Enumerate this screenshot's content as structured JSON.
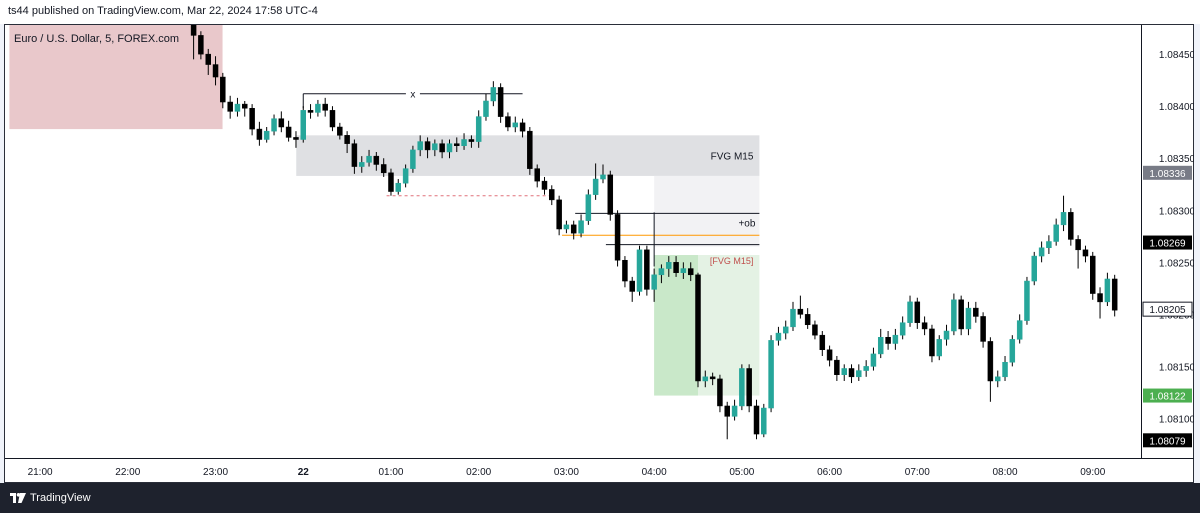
{
  "header": {
    "publisher_line": "ts44 published on TradingView.com, Mar 22, 2024 17:58 UTC-4"
  },
  "footer": {
    "brand": "TradingView",
    "brand_icon": "tradingview-logo-icon"
  },
  "chart_data": {
    "type": "candlestick",
    "symbol_label": "Euro / U.S. Dollar, 5, FOREX.com",
    "timeframe_minutes": 5,
    "x_ticks": [
      "21:00",
      "22:00",
      "23:00",
      "22",
      "01:00",
      "02:00",
      "03:00",
      "04:00",
      "05:00",
      "06:00",
      "07:00",
      "08:00",
      "09:00"
    ],
    "x_range_hours": [
      20.6,
      33.55
    ],
    "ylim": [
      1.08062,
      1.08478
    ],
    "y_ticks": [
      "1.08450",
      "1.08400",
      "1.08350",
      "1.08300",
      "1.08250",
      "1.08200",
      "1.08150",
      "1.08100"
    ],
    "price_labels": [
      {
        "value": "1.08336",
        "price": 1.08336,
        "bg": "#787b86",
        "fg": "#ffffff"
      },
      {
        "value": "1.08269",
        "price": 1.08269,
        "bg": "#000000",
        "fg": "#ffffff"
      },
      {
        "value": "1.08205",
        "price": 1.08205,
        "bg": "#ffffff",
        "fg": "#131722",
        "border": "#131722"
      },
      {
        "value": "1.08122",
        "price": 1.08122,
        "bg": "#4caf50",
        "fg": "#ffffff"
      },
      {
        "value": "1.08079",
        "price": 1.08079,
        "bg": "#000000",
        "fg": "#ffffff"
      }
    ],
    "colors": {
      "up": "#26a69a",
      "down": "#000000",
      "wick": "#000000"
    },
    "zones": [
      {
        "name": "supply-zone",
        "t0": 20.65,
        "t1": 23.08,
        "p0": 1.08378,
        "p1": 1.08478,
        "color": "#e9c8cb"
      },
      {
        "name": "fvg-m15-gray",
        "t0": 23.92,
        "t1": 29.2,
        "p0": 1.08333,
        "p1": 1.08372,
        "color": "#dfe0e3",
        "label": "FVG M15",
        "label_color": "#131722"
      },
      {
        "name": "fvg-m15-light",
        "t0": 28.0,
        "t1": 29.2,
        "p0": 1.08265,
        "p1": 1.08333,
        "color": "#f2f2f4"
      },
      {
        "name": "fvg-m15-green",
        "t0": 28.0,
        "t1": 29.2,
        "p0": 1.08122,
        "p1": 1.08257,
        "color": "#e4f2e4",
        "label": "[FVG M15]",
        "label_color": "#c0504d"
      },
      {
        "name": "fvg-m15-green-dark",
        "t0": 28.0,
        "t1": 28.5,
        "p0": 1.08122,
        "p1": 1.08257,
        "color": "#c9e8c9"
      }
    ],
    "lines": [
      {
        "name": "x-level-line",
        "t0": 24.0,
        "t1": 26.5,
        "price": 1.08412,
        "color": "#131722",
        "dash": "",
        "label": "x"
      },
      {
        "name": "x-level-tick",
        "t0": 24.0,
        "t1": 24.0,
        "price": 1.08412,
        "price2": 1.08398,
        "color": "#131722",
        "dash": ""
      },
      {
        "name": "low-dashed-line",
        "t0": 24.95,
        "t1": 26.8,
        "price": 1.08314,
        "color": "#e0707a",
        "dash": "3,3"
      },
      {
        "name": "ob-upper-line",
        "t0": 27.1,
        "t1": 29.2,
        "price": 1.08297,
        "color": "#131722",
        "dash": "",
        "label": "+ob"
      },
      {
        "name": "ob-orange-line",
        "t0": 26.95,
        "t1": 29.2,
        "price": 1.08276,
        "color": "#ff9800",
        "dash": ""
      },
      {
        "name": "fvg-top-line",
        "t0": 27.45,
        "t1": 29.2,
        "price": 1.08267,
        "color": "#131722",
        "dash": ""
      },
      {
        "name": "fvg-vertical-line",
        "t0": 28.0,
        "t1": 28.0,
        "price": 1.08298,
        "price2": 1.08246,
        "color": "#131722",
        "dash": ""
      }
    ],
    "candles": [
      [
        22.75,
        1.08478,
        1.08468,
        1.08478,
        1.08445
      ],
      [
        22.833,
        1.08468,
        1.0845,
        1.08472,
        1.08445
      ],
      [
        22.917,
        1.0845,
        1.0844,
        1.08455,
        1.0843
      ],
      [
        23.0,
        1.0844,
        1.08428,
        1.08448,
        1.0842
      ],
      [
        23.083,
        1.08428,
        1.08404,
        1.08432,
        1.08398
      ],
      [
        23.167,
        1.08404,
        1.08395,
        1.0841,
        1.08388
      ],
      [
        23.25,
        1.08395,
        1.08402,
        1.08408,
        1.0839
      ],
      [
        23.333,
        1.08402,
        1.08398,
        1.08405,
        1.0839
      ],
      [
        23.417,
        1.08398,
        1.08378,
        1.08402,
        1.08372
      ],
      [
        23.5,
        1.08378,
        1.08368,
        1.08385,
        1.08362
      ],
      [
        23.583,
        1.08368,
        1.08376,
        1.0838,
        1.08365
      ],
      [
        23.667,
        1.08376,
        1.08388,
        1.08392,
        1.08372
      ],
      [
        23.75,
        1.08388,
        1.0838,
        1.08395,
        1.08375
      ],
      [
        23.833,
        1.0838,
        1.0837,
        1.08386,
        1.08366
      ],
      [
        23.917,
        1.0837,
        1.08368,
        1.08376,
        1.0836
      ],
      [
        24.0,
        1.08368,
        1.08396,
        1.084,
        1.08365
      ],
      [
        24.083,
        1.08396,
        1.08394,
        1.08402,
        1.08388
      ],
      [
        24.167,
        1.08394,
        1.08402,
        1.08406,
        1.0839
      ],
      [
        24.25,
        1.08402,
        1.08396,
        1.08408,
        1.0839
      ],
      [
        24.333,
        1.08396,
        1.0838,
        1.084,
        1.08376
      ],
      [
        24.417,
        1.0838,
        1.08372,
        1.08384,
        1.08368
      ],
      [
        24.5,
        1.08372,
        1.08364,
        1.08376,
        1.08355
      ],
      [
        24.583,
        1.08364,
        1.08342,
        1.08368,
        1.08335
      ],
      [
        24.667,
        1.08342,
        1.08346,
        1.08352,
        1.08336
      ],
      [
        24.75,
        1.08346,
        1.08352,
        1.08358,
        1.08342
      ],
      [
        24.833,
        1.08352,
        1.08344,
        1.08356,
        1.08338
      ],
      [
        24.917,
        1.08344,
        1.08336,
        1.0835,
        1.08332
      ],
      [
        25.0,
        1.08336,
        1.08318,
        1.0834,
        1.08314
      ],
      [
        25.083,
        1.08318,
        1.08326,
        1.0833,
        1.08315
      ],
      [
        25.167,
        1.08326,
        1.0834,
        1.08344,
        1.08322
      ],
      [
        25.25,
        1.0834,
        1.08358,
        1.08362,
        1.08336
      ],
      [
        25.333,
        1.08358,
        1.08366,
        1.08372,
        1.08352
      ],
      [
        25.417,
        1.08366,
        1.08358,
        1.0837,
        1.0835
      ],
      [
        25.5,
        1.08358,
        1.08364,
        1.08368,
        1.08352
      ],
      [
        25.583,
        1.08364,
        1.08356,
        1.08368,
        1.0835
      ],
      [
        25.667,
        1.08356,
        1.08364,
        1.08368,
        1.0835
      ],
      [
        25.75,
        1.08364,
        1.08362,
        1.0837,
        1.08356
      ],
      [
        25.833,
        1.08362,
        1.08368,
        1.08374,
        1.08358
      ],
      [
        25.917,
        1.08368,
        1.08366,
        1.08372,
        1.0836
      ],
      [
        26.0,
        1.08366,
        1.0839,
        1.08396,
        1.0836
      ],
      [
        26.083,
        1.0839,
        1.08405,
        1.08412,
        1.08386
      ],
      [
        26.167,
        1.08405,
        1.08418,
        1.08424,
        1.084
      ],
      [
        26.25,
        1.08418,
        1.0839,
        1.08422,
        1.08384
      ],
      [
        26.333,
        1.0839,
        1.0838,
        1.08394,
        1.08376
      ],
      [
        26.417,
        1.0838,
        1.08384,
        1.0839,
        1.08375
      ],
      [
        26.5,
        1.08384,
        1.08376,
        1.08388,
        1.0837
      ],
      [
        26.583,
        1.08376,
        1.0834,
        1.0838,
        1.08334
      ],
      [
        26.667,
        1.0834,
        1.08328,
        1.08344,
        1.08322
      ],
      [
        26.75,
        1.08328,
        1.0832,
        1.08332,
        1.08315
      ],
      [
        26.833,
        1.0832,
        1.0831,
        1.08324,
        1.08305
      ],
      [
        26.917,
        1.0831,
        1.08282,
        1.08314,
        1.08276
      ],
      [
        27.0,
        1.08282,
        1.08286,
        1.0829,
        1.08278
      ],
      [
        27.083,
        1.08286,
        1.08278,
        1.0829,
        1.08272
      ],
      [
        27.167,
        1.08278,
        1.0829,
        1.08296,
        1.08274
      ],
      [
        27.25,
        1.0829,
        1.08315,
        1.0832,
        1.08286
      ],
      [
        27.333,
        1.08315,
        1.0833,
        1.08345,
        1.0831
      ],
      [
        27.417,
        1.0833,
        1.08334,
        1.08344,
        1.08326
      ],
      [
        27.5,
        1.08334,
        1.08296,
        1.08338,
        1.0829
      ],
      [
        27.583,
        1.08296,
        1.08252,
        1.083,
        1.08246
      ],
      [
        27.667,
        1.08252,
        1.08232,
        1.08256,
        1.08226
      ],
      [
        27.75,
        1.08232,
        1.08222,
        1.08236,
        1.08212
      ],
      [
        27.833,
        1.08222,
        1.08262,
        1.08266,
        1.08218
      ],
      [
        27.917,
        1.08262,
        1.08224,
        1.08266,
        1.08218
      ],
      [
        28.0,
        1.08224,
        1.08238,
        1.08244,
        1.08212
      ],
      [
        28.083,
        1.08238,
        1.08244,
        1.08248,
        1.0823
      ],
      [
        28.167,
        1.08244,
        1.0825,
        1.08256,
        1.08236
      ],
      [
        28.25,
        1.0825,
        1.0824,
        1.08256,
        1.08236
      ],
      [
        28.333,
        1.0824,
        1.08244,
        1.0825,
        1.08234
      ],
      [
        28.417,
        1.08244,
        1.08238,
        1.0825,
        1.08232
      ],
      [
        28.5,
        1.08238,
        1.08136,
        1.0824,
        1.0813
      ],
      [
        28.583,
        1.08136,
        1.0814,
        1.08146,
        1.0813
      ],
      [
        28.667,
        1.0814,
        1.08138,
        1.08144,
        1.08132
      ],
      [
        28.75,
        1.08138,
        1.08112,
        1.08142,
        1.08106
      ],
      [
        28.833,
        1.08112,
        1.08102,
        1.08116,
        1.0808
      ],
      [
        28.917,
        1.08102,
        1.08112,
        1.08118,
        1.08098
      ],
      [
        29.0,
        1.08112,
        1.08148,
        1.08152,
        1.08108
      ],
      [
        29.083,
        1.08148,
        1.08112,
        1.08152,
        1.08106
      ],
      [
        29.167,
        1.08112,
        1.08085,
        1.08118,
        1.0808
      ],
      [
        29.25,
        1.08085,
        1.0811,
        1.08114,
        1.08082
      ],
      [
        29.333,
        1.0811,
        1.08175,
        1.0818,
        1.08106
      ],
      [
        29.417,
        1.08175,
        1.08182,
        1.08188,
        1.0817
      ],
      [
        29.5,
        1.08182,
        1.08188,
        1.08194,
        1.08176
      ],
      [
        29.583,
        1.08188,
        1.08205,
        1.08212,
        1.08184
      ],
      [
        29.667,
        1.08205,
        1.082,
        1.08218,
        1.08196
      ],
      [
        29.75,
        1.082,
        1.0819,
        1.08206,
        1.08186
      ],
      [
        29.833,
        1.0819,
        1.0818,
        1.08194,
        1.08176
      ],
      [
        29.917,
        1.0818,
        1.08166,
        1.08184,
        1.0816
      ],
      [
        30.0,
        1.08166,
        1.08156,
        1.0817,
        1.0815
      ],
      [
        30.083,
        1.08156,
        1.08142,
        1.0816,
        1.08136
      ],
      [
        30.167,
        1.08142,
        1.08148,
        1.08152,
        1.08136
      ],
      [
        30.25,
        1.08148,
        1.0814,
        1.08152,
        1.08134
      ],
      [
        30.333,
        1.0814,
        1.08146,
        1.08152,
        1.08136
      ],
      [
        30.417,
        1.08146,
        1.0815,
        1.08156,
        1.0814
      ],
      [
        30.5,
        1.0815,
        1.08162,
        1.08168,
        1.08146
      ],
      [
        30.583,
        1.08162,
        1.08178,
        1.08186,
        1.08158
      ],
      [
        30.667,
        1.08178,
        1.08172,
        1.08184,
        1.08166
      ],
      [
        30.75,
        1.08172,
        1.0818,
        1.08186,
        1.08166
      ],
      [
        30.833,
        1.0818,
        1.08192,
        1.08198,
        1.08176
      ],
      [
        30.917,
        1.08192,
        1.08212,
        1.08218,
        1.08188
      ],
      [
        31.0,
        1.08212,
        1.08192,
        1.08216,
        1.08186
      ],
      [
        31.083,
        1.08192,
        1.08186,
        1.08198,
        1.0818
      ],
      [
        31.167,
        1.08186,
        1.0816,
        1.0819,
        1.08154
      ],
      [
        31.25,
        1.0816,
        1.08176,
        1.0818,
        1.08156
      ],
      [
        31.333,
        1.08176,
        1.08184,
        1.0819,
        1.0817
      ],
      [
        31.417,
        1.08184,
        1.08214,
        1.0822,
        1.0818
      ],
      [
        31.5,
        1.08214,
        1.08186,
        1.08218,
        1.0818
      ],
      [
        31.583,
        1.08186,
        1.08206,
        1.08212,
        1.0818
      ],
      [
        31.667,
        1.08206,
        1.08198,
        1.08212,
        1.08192
      ],
      [
        31.75,
        1.08198,
        1.08174,
        1.08202,
        1.08168
      ],
      [
        31.833,
        1.08174,
        1.08136,
        1.08178,
        1.08116
      ],
      [
        31.917,
        1.08136,
        1.0814,
        1.08146,
        1.0813
      ],
      [
        32.0,
        1.0814,
        1.08154,
        1.0816,
        1.08136
      ],
      [
        32.083,
        1.08154,
        1.08176,
        1.0818,
        1.0815
      ],
      [
        32.167,
        1.08176,
        1.08194,
        1.082,
        1.08172
      ],
      [
        32.25,
        1.08194,
        1.08232,
        1.08236,
        1.0819
      ],
      [
        32.333,
        1.08232,
        1.08256,
        1.0826,
        1.08228
      ],
      [
        32.417,
        1.08256,
        1.08264,
        1.0827,
        1.0825
      ],
      [
        32.5,
        1.08264,
        1.0827,
        1.08276,
        1.08258
      ],
      [
        32.583,
        1.0827,
        1.08286,
        1.08292,
        1.08266
      ],
      [
        32.667,
        1.08286,
        1.08298,
        1.08314,
        1.0828
      ],
      [
        32.75,
        1.08298,
        1.08272,
        1.08302,
        1.08266
      ],
      [
        32.833,
        1.08272,
        1.08262,
        1.08276,
        1.08244
      ],
      [
        32.917,
        1.08262,
        1.08256,
        1.08266,
        1.0825
      ],
      [
        33.0,
        1.08256,
        1.0822,
        1.0826,
        1.08214
      ],
      [
        33.083,
        1.0822,
        1.08212,
        1.08226,
        1.08196
      ],
      [
        33.167,
        1.08212,
        1.08234,
        1.0824,
        1.08208
      ],
      [
        33.25,
        1.08234,
        1.08204,
        1.08238,
        1.08198
      ]
    ]
  }
}
